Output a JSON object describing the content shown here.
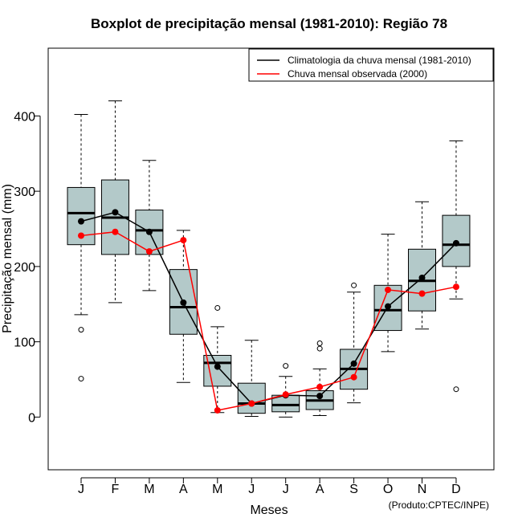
{
  "chart_data": {
    "type": "boxplot",
    "title": "Boxplot de precipitação mensal (1981-2010): Região 78",
    "xlabel": "Meses",
    "ylabel": "Precipitação mensal (mm)",
    "ylim": [
      -70,
      490
    ],
    "yticks": [
      0,
      100,
      200,
      300,
      400
    ],
    "categories": [
      "J",
      "F",
      "M",
      "A",
      "M",
      "J",
      "J",
      "A",
      "S",
      "O",
      "N",
      "D"
    ],
    "boxes": [
      {
        "whisker_low": 136,
        "q1": 229,
        "median": 271,
        "q3": 305,
        "whisker_high": 402,
        "outliers": [
          116,
          51
        ]
      },
      {
        "whisker_low": 152,
        "q1": 216,
        "median": 265,
        "q3": 315,
        "whisker_high": 420,
        "outliers": []
      },
      {
        "whisker_low": 168,
        "q1": 216,
        "median": 248,
        "q3": 275,
        "whisker_high": 341,
        "outliers": []
      },
      {
        "whisker_low": 46,
        "q1": 110,
        "median": 146,
        "q3": 196,
        "whisker_high": 248,
        "outliers": []
      },
      {
        "whisker_low": 6,
        "q1": 41,
        "median": 72,
        "q3": 82,
        "whisker_high": 120,
        "outliers": [
          145
        ]
      },
      {
        "whisker_low": 1,
        "q1": 5,
        "median": 18,
        "q3": 45,
        "whisker_high": 102,
        "outliers": []
      },
      {
        "whisker_low": 0,
        "q1": 7,
        "median": 16,
        "q3": 29,
        "whisker_high": 54,
        "outliers": [
          68
        ]
      },
      {
        "whisker_low": 2,
        "q1": 10,
        "median": 22,
        "q3": 35,
        "whisker_high": 64,
        "outliers": [
          91,
          98
        ]
      },
      {
        "whisker_low": 19,
        "q1": 37,
        "median": 64,
        "q3": 90,
        "whisker_high": 166,
        "outliers": [
          175
        ]
      },
      {
        "whisker_low": 87,
        "q1": 115,
        "median": 142,
        "q3": 175,
        "whisker_high": 243,
        "outliers": []
      },
      {
        "whisker_low": 117,
        "q1": 141,
        "median": 181,
        "q3": 223,
        "whisker_high": 286,
        "outliers": []
      },
      {
        "whisker_low": 157,
        "q1": 200,
        "median": 229,
        "q3": 268,
        "whisker_high": 367,
        "outliers": [
          37
        ]
      }
    ],
    "series": [
      {
        "name": "Climatologia da chuva mensal (1981-2010)",
        "color": "#000000",
        "values": [
          260,
          272,
          246,
          152,
          67,
          18,
          29,
          28,
          71,
          147,
          185,
          231
        ]
      },
      {
        "name": "Chuva mensal observada (2000)",
        "color": "#ff0000",
        "values": [
          241,
          246,
          220,
          235,
          9,
          18,
          30,
          40,
          53,
          169,
          164,
          173
        ]
      }
    ],
    "box_color": "#b3c9c9",
    "legend_position": "top-right"
  },
  "footer": {
    "credit": "(Produto:CPTEC/INPE)"
  }
}
